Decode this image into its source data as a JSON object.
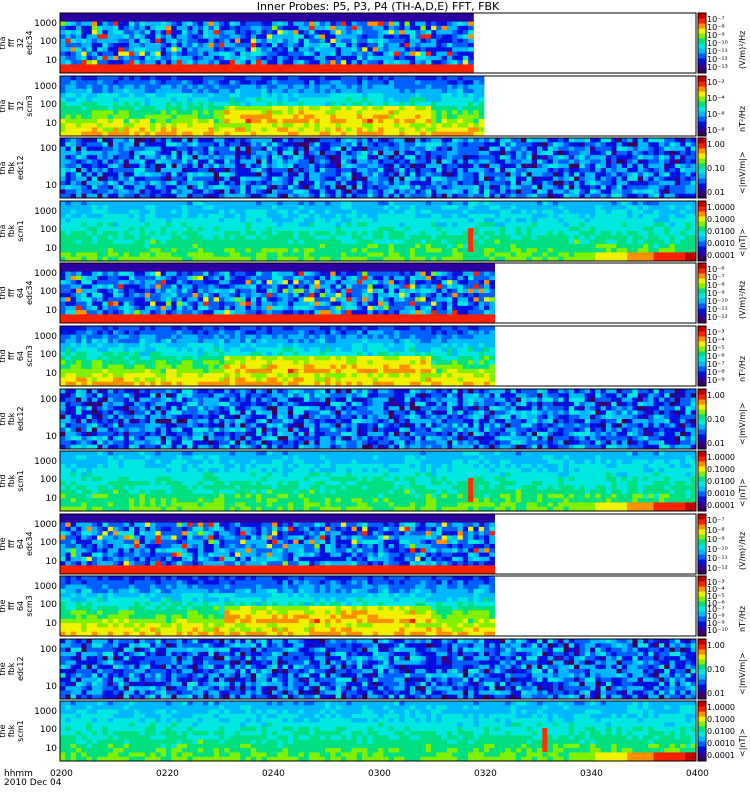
{
  "chart_data": {
    "type": "heatmap",
    "title": "Inner Probes: P5, P3, P4 (TH-A,D,E) FFT, FBK",
    "x_ticks": [
      "0200",
      "0220",
      "0240",
      "0300",
      "0320",
      "0340",
      "0400"
    ],
    "x_range_minutes": [
      0,
      120
    ],
    "footer": {
      "label": "hhmm",
      "date": "2010 Dec 04"
    },
    "panels": [
      {
        "ylabel": [
          "tha",
          "fff",
          "32",
          "edc34"
        ],
        "yticks": [
          "1000",
          "100",
          "10"
        ],
        "cb_ticks": [
          "10⁻⁷",
          "10⁻⁸",
          "10⁻⁹",
          "10⁻¹⁰",
          "10⁻¹¹",
          "10⁻¹²",
          "10⁻¹³"
        ],
        "cb_unit": "(V/m)²/Hz",
        "kind": "efft",
        "data_end_min": 78,
        "ymin_fill": 0.85
      },
      {
        "ylabel": [
          "tha",
          "fff",
          "32",
          "scm3"
        ],
        "yticks": [
          "1000",
          "100",
          "10"
        ],
        "cb_ticks": [
          "10⁻²",
          "10⁻⁴",
          "10⁻⁶",
          "10⁻⁸"
        ],
        "cb_unit": "nT²/Hz",
        "kind": "scm",
        "data_end_min": 80,
        "ymin_fill": 0.85
      },
      {
        "ylabel": [
          "tha",
          "fbk",
          "edc12"
        ],
        "yticks": [
          "100",
          "10"
        ],
        "cb_ticks": [
          "1.00",
          "0.10",
          "0.01"
        ],
        "cb_unit": "<|mV/m|>",
        "kind": "fbke",
        "data_end_min": 120
      },
      {
        "ylabel": [
          "tha",
          "fbk",
          "scm1"
        ],
        "yticks": [
          "1000",
          "100",
          "10"
        ],
        "cb_ticks": [
          "1.0000",
          "0.1000",
          "0.0100",
          "0.0010",
          "0.0001"
        ],
        "cb_unit": "<|nT|>",
        "kind": "fbkb",
        "data_end_min": 120,
        "spike_min": 77
      },
      {
        "ylabel": [
          "thd",
          "fff",
          "64",
          "edc34"
        ],
        "yticks": [
          "1000",
          "100",
          "10"
        ],
        "cb_ticks": [
          "10⁻⁶",
          "10⁻⁷",
          "10⁻⁸",
          "10⁻⁹",
          "10⁻¹⁰",
          "10⁻¹¹",
          "10⁻¹²"
        ],
        "cb_unit": "(V/m)²/Hz",
        "kind": "efft",
        "data_end_min": 82,
        "ymin_fill": 0.6
      },
      {
        "ylabel": [
          "thd",
          "fff",
          "64",
          "scm3"
        ],
        "yticks": [
          "1000",
          "100",
          "10"
        ],
        "cb_ticks": [
          "10⁻³",
          "10⁻⁴",
          "10⁻⁵",
          "10⁻⁶",
          "10⁻⁷",
          "10⁻⁸",
          "10⁻⁹"
        ],
        "cb_unit": "nT²/Hz",
        "kind": "scm",
        "data_end_min": 82,
        "ymin_fill": 0.9
      },
      {
        "ylabel": [
          "thd",
          "fbk",
          "edc12"
        ],
        "yticks": [
          "100",
          "10"
        ],
        "cb_ticks": [
          "1.00",
          "0.10",
          "0.01"
        ],
        "cb_unit": "<|mV/m|>",
        "kind": "fbke",
        "data_end_min": 120
      },
      {
        "ylabel": [
          "thd",
          "fbk",
          "scm1"
        ],
        "yticks": [
          "1000",
          "100",
          "10"
        ],
        "cb_ticks": [
          "1.0000",
          "0.1000",
          "0.0100",
          "0.0010",
          "0.0001"
        ],
        "cb_unit": "<|nT|>",
        "kind": "fbkb",
        "data_end_min": 120,
        "spike_min": 77
      },
      {
        "ylabel": [
          "the",
          "fff",
          "64",
          "edc34"
        ],
        "yticks": [
          "1000",
          "100",
          "10"
        ],
        "cb_ticks": [
          "10⁻⁷",
          "10⁻⁸",
          "10⁻⁹",
          "10⁻¹⁰",
          "10⁻¹¹",
          "10⁻¹²"
        ],
        "cb_unit": "(V/m)²/Hz",
        "kind": "efft",
        "data_end_min": 82,
        "ymin_fill": 0.6
      },
      {
        "ylabel": [
          "the",
          "fff",
          "64",
          "scm3"
        ],
        "yticks": [
          "1000",
          "100",
          "10"
        ],
        "cb_ticks": [
          "10⁻³",
          "10⁻⁴",
          "10⁻⁵",
          "10⁻⁶",
          "10⁻⁷",
          "10⁻⁸",
          "10⁻⁹",
          "10⁻¹⁰"
        ],
        "cb_unit": "nT²/Hz",
        "kind": "scm",
        "data_end_min": 82,
        "ymin_fill": 0.9
      },
      {
        "ylabel": [
          "the",
          "fbk",
          "edc12"
        ],
        "yticks": [
          "100",
          "10"
        ],
        "cb_ticks": [
          "1.00",
          "0.10",
          "0.01"
        ],
        "cb_unit": "<|mV/m|>",
        "kind": "fbke",
        "data_end_min": 120
      },
      {
        "ylabel": [
          "the",
          "fbk",
          "scm1"
        ],
        "yticks": [
          "1000",
          "100",
          "10"
        ],
        "cb_ticks": [
          "1.0000",
          "0.1000",
          "0.0100",
          "0.0010",
          "0.0001"
        ],
        "cb_unit": "<|nT|>",
        "kind": "fbkb",
        "data_end_min": 120,
        "spike_min": 91
      }
    ]
  },
  "colors": {
    "colorbar": [
      "#3a005a",
      "#2a00a0",
      "#0010e0",
      "#0060ff",
      "#00b8ff",
      "#00e8e0",
      "#00e080",
      "#80f000",
      "#f0f000",
      "#ff9000",
      "#ff2000",
      "#c00000"
    ]
  }
}
